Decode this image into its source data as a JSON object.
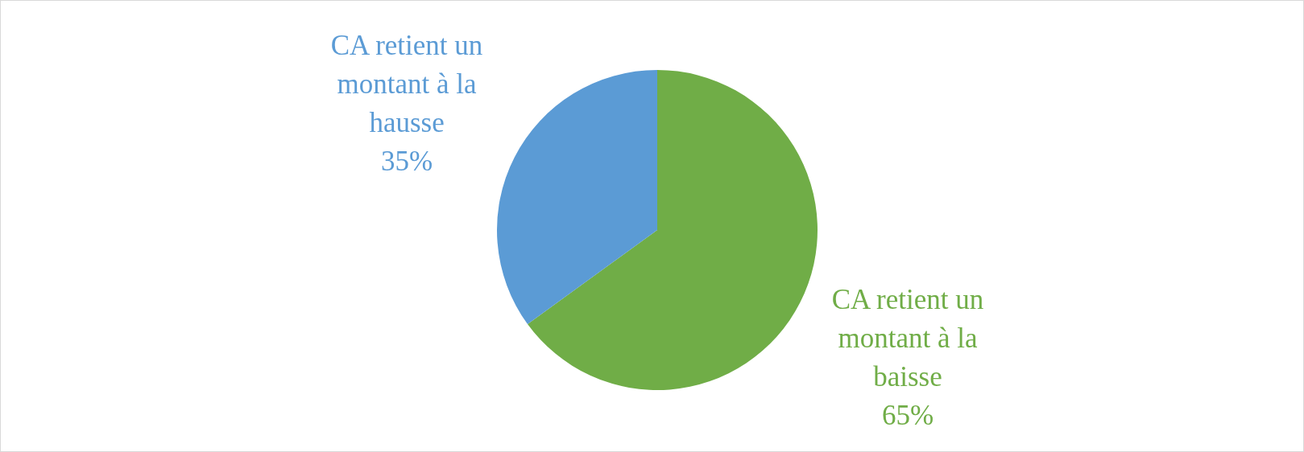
{
  "chart_data": {
    "type": "pie",
    "categories": [
      "CA retient un montant à la baisse",
      "CA retient un montant à la hausse"
    ],
    "values": [
      65,
      35
    ],
    "colors": [
      "#70ad47",
      "#5b9bd5"
    ],
    "value_labels": [
      "65%",
      "35%"
    ],
    "legend": false
  }
}
